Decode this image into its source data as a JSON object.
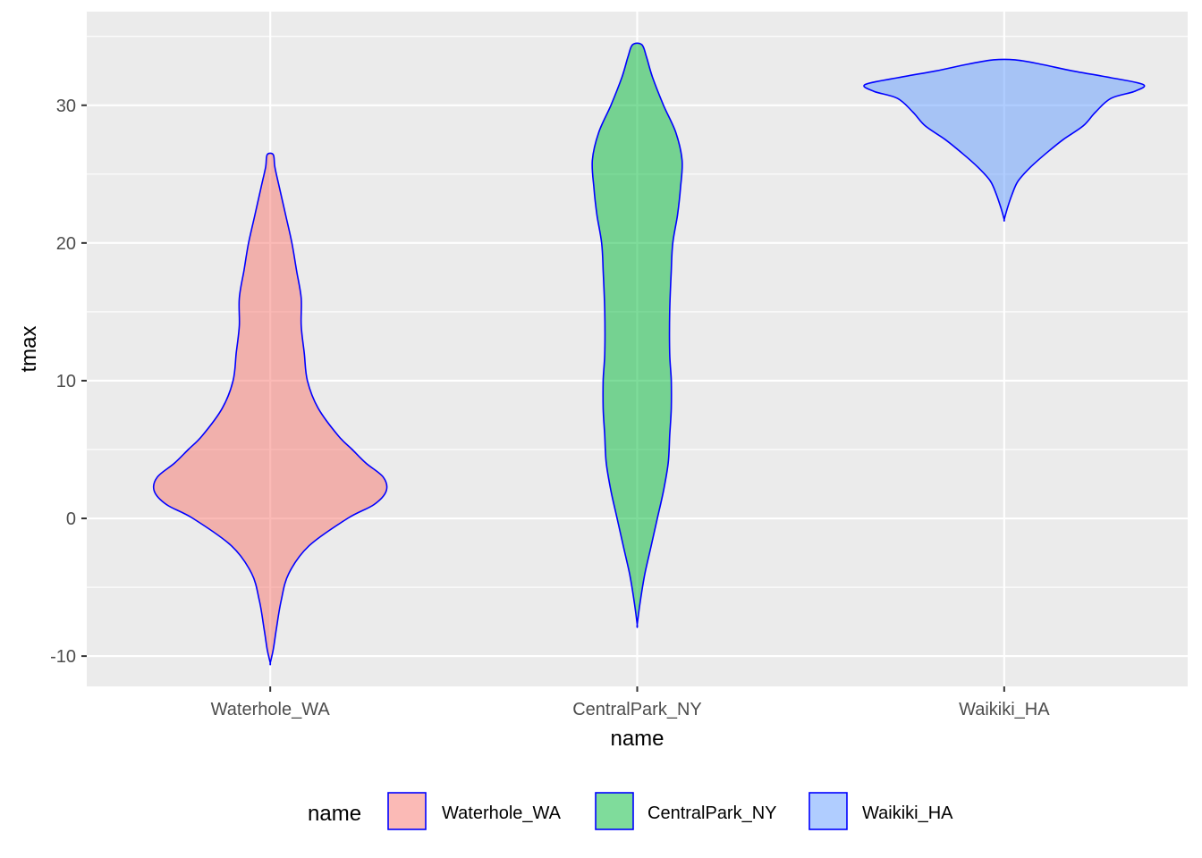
{
  "chart_data": {
    "type": "violin",
    "xlabel": "name",
    "ylabel": "tmax",
    "ylim": [
      -12.2,
      36.8
    ],
    "yticks": [
      -10,
      0,
      10,
      20,
      30
    ],
    "categories": [
      "Waterhole_WA",
      "CentralPark_NY",
      "Waikiki_HA"
    ],
    "colors": {
      "panel_background": "#EBEBEB",
      "grid": "#FFFFFF",
      "outline": "#0000FF",
      "Waterhole_WA": "#F8766D",
      "CentralPark_NY": "#00BA38",
      "Waikiki_HA": "#619CFF"
    },
    "fill_alpha": 0.5,
    "grid": true,
    "series": [
      {
        "name": "Waterhole_WA",
        "min": -10.5,
        "max": 26.4,
        "density_profile": [
          [
            -10.5,
            0.0
          ],
          [
            -9.5,
            0.02
          ],
          [
            -8.0,
            0.04
          ],
          [
            -6.0,
            0.07
          ],
          [
            -4.0,
            0.12
          ],
          [
            -2.0,
            0.25
          ],
          [
            0.0,
            0.5
          ],
          [
            1.0,
            0.67
          ],
          [
            2.0,
            0.75
          ],
          [
            3.0,
            0.73
          ],
          [
            4.0,
            0.62
          ],
          [
            5.0,
            0.53
          ],
          [
            6.0,
            0.44
          ],
          [
            8.0,
            0.31
          ],
          [
            10.0,
            0.24
          ],
          [
            12.0,
            0.22
          ],
          [
            14.0,
            0.2
          ],
          [
            16.0,
            0.2
          ],
          [
            18.0,
            0.17
          ],
          [
            20.0,
            0.14
          ],
          [
            22.0,
            0.1
          ],
          [
            24.0,
            0.06
          ],
          [
            25.5,
            0.03
          ],
          [
            26.4,
            0.02
          ]
        ]
      },
      {
        "name": "CentralPark_NY",
        "min": -7.7,
        "max": 34.4,
        "density_profile": [
          [
            -7.7,
            0.0
          ],
          [
            -6.0,
            0.02
          ],
          [
            -4.0,
            0.05
          ],
          [
            -2.0,
            0.09
          ],
          [
            0.0,
            0.13
          ],
          [
            2.0,
            0.17
          ],
          [
            4.0,
            0.2
          ],
          [
            6.0,
            0.21
          ],
          [
            8.0,
            0.22
          ],
          [
            10.0,
            0.22
          ],
          [
            12.0,
            0.21
          ],
          [
            15.0,
            0.21
          ],
          [
            18.0,
            0.22
          ],
          [
            20.0,
            0.23
          ],
          [
            22.0,
            0.26
          ],
          [
            24.0,
            0.28
          ],
          [
            26.0,
            0.29
          ],
          [
            28.0,
            0.25
          ],
          [
            30.0,
            0.17
          ],
          [
            32.0,
            0.1
          ],
          [
            33.5,
            0.06
          ],
          [
            34.4,
            0.03
          ]
        ]
      },
      {
        "name": "Waikiki_HA",
        "min": 21.7,
        "max": 33.3,
        "density_profile": [
          [
            21.7,
            0.0
          ],
          [
            22.5,
            0.02
          ],
          [
            23.5,
            0.05
          ],
          [
            24.5,
            0.09
          ],
          [
            25.5,
            0.17
          ],
          [
            26.5,
            0.27
          ],
          [
            27.5,
            0.38
          ],
          [
            28.5,
            0.51
          ],
          [
            29.5,
            0.59
          ],
          [
            30.5,
            0.69
          ],
          [
            31.0,
            0.84
          ],
          [
            31.5,
            0.9
          ],
          [
            32.0,
            0.69
          ],
          [
            32.5,
            0.44
          ],
          [
            33.0,
            0.23
          ],
          [
            33.3,
            0.07
          ]
        ]
      }
    ],
    "legend": {
      "title": "name",
      "position": "bottom",
      "items": [
        "Waterhole_WA",
        "CentralPark_NY",
        "Waikiki_HA"
      ]
    }
  }
}
